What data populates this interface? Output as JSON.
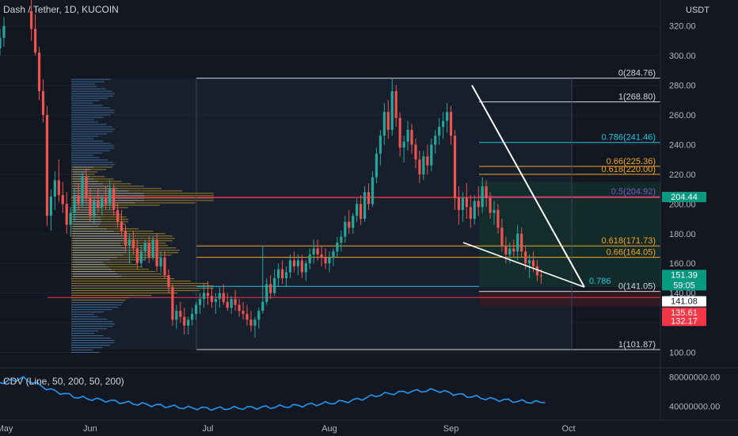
{
  "header": {
    "symbol_line": "Dash / Tether, 1D, KUCOIN",
    "currency": "USDT"
  },
  "colors": {
    "background": "#131722",
    "up": "#26a69a",
    "down": "#ef5350",
    "grid": "#1e2230",
    "fib_white": "#d1d4dc",
    "fib_orange": "#f5a623",
    "fib_cyan": "#26c6da",
    "fib_purple": "#7e57c2",
    "red_line": "#f23645",
    "cdv_line": "#2196f3",
    "tag_green": "#089981",
    "tag_red": "#f23645"
  },
  "chart_data": {
    "type": "candlestick",
    "y_axis": {
      "ticks": [
        "100.00",
        "120.00",
        "140.00",
        "160.00",
        "180.00",
        "200.00",
        "220.00",
        "240.00",
        "260.00",
        "280.00",
        "300.00",
        "320.00"
      ],
      "range": [
        96,
        330
      ]
    },
    "x_axis": {
      "ticks": [
        "May",
        "Jun",
        "Jul",
        "Aug",
        "Sep",
        "Oct"
      ],
      "range": [
        "2022-05-09",
        "2022-10-03"
      ]
    },
    "fib_levels": [
      {
        "label": "0(284.76)",
        "value": 284.76,
        "color": "white"
      },
      {
        "label": "1(268.80)",
        "value": 268.8,
        "color": "white"
      },
      {
        "label": "0.786(241.46)",
        "value": 241.46,
        "color": "cyan"
      },
      {
        "label": "0.66(225.36)",
        "value": 225.36,
        "color": "orange"
      },
      {
        "label": "0.618(220.00)",
        "value": 220.0,
        "color": "orange"
      },
      {
        "label": "0.5(204.92)",
        "value": 204.92,
        "color": "purple"
      },
      {
        "label": "0.618(171.73)",
        "value": 171.73,
        "color": "orange"
      },
      {
        "label": "0.66(164.05)",
        "value": 164.05,
        "color": "orange"
      },
      {
        "label": "0.786",
        "value": 144.5,
        "color": "cyan"
      },
      {
        "label": "0(141.05)",
        "value": 141.05,
        "color": "white"
      },
      {
        "label": "1(101.87)",
        "value": 101.87,
        "color": "white"
      }
    ],
    "horizontal_lines": [
      {
        "value": 204.44,
        "color": "red"
      },
      {
        "value": 137.0,
        "color": "red"
      }
    ],
    "price_tags": [
      {
        "value": 204.44,
        "text": "204.44",
        "bg": "green",
        "fg": "#ffffff"
      },
      {
        "value": 151.39,
        "text": "151.39",
        "sub": "59:05",
        "bg": "green",
        "fg": "#ffffff"
      },
      {
        "value": 141.08,
        "text": "141.08",
        "bg": "white",
        "fg": "#131722"
      },
      {
        "value": 135.61,
        "text": "135.61",
        "bg": "red",
        "fg": "#ffffff"
      },
      {
        "value": 132.17,
        "text": "132.17",
        "bg": "red",
        "fg": "#ffffff"
      }
    ],
    "candles": [
      [
        "2022-05-09",
        305,
        318,
        300,
        312
      ],
      [
        "2022-05-10",
        312,
        326,
        306,
        320
      ],
      [
        "2022-05-17",
        330,
        338,
        310,
        318
      ],
      [
        "2022-05-18",
        318,
        328,
        300,
        302
      ],
      [
        "2022-05-19",
        302,
        306,
        270,
        276
      ],
      [
        "2022-05-20",
        276,
        284,
        255,
        260
      ],
      [
        "2022-05-21",
        260,
        266,
        185,
        192
      ],
      [
        "2022-05-22",
        192,
        210,
        182,
        205
      ],
      [
        "2022-05-23",
        205,
        222,
        196,
        216
      ],
      [
        "2022-05-24",
        216,
        230,
        201,
        206
      ],
      [
        "2022-05-25",
        206,
        215,
        194,
        200
      ],
      [
        "2022-05-26",
        200,
        208,
        180,
        186
      ],
      [
        "2022-05-27",
        186,
        198,
        178,
        194
      ],
      [
        "2022-05-28",
        194,
        210,
        188,
        206
      ],
      [
        "2022-05-29",
        206,
        214,
        196,
        200
      ],
      [
        "2022-05-30",
        200,
        222,
        198,
        218
      ],
      [
        "2022-05-31",
        218,
        224,
        200,
        204
      ],
      [
        "2022-06-01",
        204,
        210,
        188,
        192
      ],
      [
        "2022-06-02",
        192,
        206,
        186,
        202
      ],
      [
        "2022-06-03",
        202,
        210,
        194,
        198
      ],
      [
        "2022-06-04",
        198,
        206,
        192,
        204
      ],
      [
        "2022-06-05",
        204,
        212,
        196,
        200
      ],
      [
        "2022-06-06",
        200,
        216,
        196,
        210
      ],
      [
        "2022-06-07",
        210,
        214,
        192,
        196
      ],
      [
        "2022-06-08",
        196,
        200,
        184,
        188
      ],
      [
        "2022-06-09",
        188,
        196,
        178,
        182
      ],
      [
        "2022-06-10",
        182,
        186,
        168,
        172
      ],
      [
        "2022-06-11",
        172,
        180,
        160,
        176
      ],
      [
        "2022-06-12",
        176,
        182,
        166,
        170
      ],
      [
        "2022-06-13",
        170,
        176,
        156,
        160
      ],
      [
        "2022-06-14",
        160,
        172,
        158,
        168
      ],
      [
        "2022-06-15",
        168,
        176,
        162,
        174
      ],
      [
        "2022-06-16",
        174,
        178,
        160,
        164
      ],
      [
        "2022-06-17",
        164,
        178,
        162,
        176
      ],
      [
        "2022-06-18",
        176,
        180,
        154,
        158
      ],
      [
        "2022-06-19",
        158,
        168,
        154,
        164
      ],
      [
        "2022-06-20",
        164,
        168,
        150,
        152
      ],
      [
        "2022-06-21",
        152,
        156,
        140,
        144
      ],
      [
        "2022-06-22",
        144,
        146,
        118,
        122
      ],
      [
        "2022-06-23",
        122,
        132,
        116,
        128
      ],
      [
        "2022-06-24",
        128,
        134,
        120,
        124
      ],
      [
        "2022-06-25",
        124,
        130,
        112,
        118
      ],
      [
        "2022-06-26",
        118,
        124,
        112,
        122
      ],
      [
        "2022-06-27",
        122,
        130,
        118,
        126
      ],
      [
        "2022-06-28",
        126,
        134,
        122,
        132
      ],
      [
        "2022-06-29",
        132,
        140,
        126,
        136
      ],
      [
        "2022-06-30",
        136,
        146,
        130,
        140
      ],
      [
        "2022-07-01",
        140,
        148,
        132,
        138
      ],
      [
        "2022-07-02",
        138,
        144,
        130,
        134
      ],
      [
        "2022-07-03",
        134,
        140,
        126,
        136
      ],
      [
        "2022-07-04",
        136,
        144,
        130,
        140
      ],
      [
        "2022-07-05",
        140,
        146,
        132,
        134
      ],
      [
        "2022-07-06",
        134,
        140,
        128,
        130
      ],
      [
        "2022-07-07",
        130,
        138,
        126,
        136
      ],
      [
        "2022-07-08",
        136,
        142,
        128,
        132
      ],
      [
        "2022-07-09",
        132,
        136,
        124,
        128
      ],
      [
        "2022-07-10",
        128,
        134,
        122,
        126
      ],
      [
        "2022-07-11",
        126,
        132,
        118,
        122
      ],
      [
        "2022-07-12",
        122,
        128,
        114,
        118
      ],
      [
        "2022-07-13",
        118,
        124,
        110,
        122
      ],
      [
        "2022-07-14",
        122,
        130,
        116,
        128
      ],
      [
        "2022-07-15",
        128,
        172,
        126,
        134
      ],
      [
        "2022-07-16",
        134,
        150,
        132,
        146
      ],
      [
        "2022-07-17",
        146,
        152,
        136,
        140
      ],
      [
        "2022-07-18",
        140,
        156,
        138,
        150
      ],
      [
        "2022-07-19",
        150,
        160,
        144,
        156
      ],
      [
        "2022-07-20",
        156,
        162,
        146,
        150
      ],
      [
        "2022-07-21",
        150,
        158,
        144,
        154
      ],
      [
        "2022-07-22",
        154,
        166,
        150,
        162
      ],
      [
        "2022-07-23",
        162,
        168,
        154,
        158
      ],
      [
        "2022-07-24",
        158,
        166,
        152,
        162
      ],
      [
        "2022-07-25",
        162,
        166,
        150,
        154
      ],
      [
        "2022-07-26",
        154,
        162,
        148,
        160
      ],
      [
        "2022-07-27",
        160,
        170,
        156,
        166
      ],
      [
        "2022-07-28",
        166,
        176,
        160,
        170
      ],
      [
        "2022-07-29",
        170,
        176,
        162,
        166
      ],
      [
        "2022-07-30",
        166,
        172,
        158,
        164
      ],
      [
        "2022-07-31",
        164,
        170,
        156,
        160
      ],
      [
        "2022-08-01",
        160,
        168,
        154,
        164
      ],
      [
        "2022-08-02",
        164,
        170,
        158,
        168
      ],
      [
        "2022-08-03",
        168,
        178,
        164,
        174
      ],
      [
        "2022-08-04",
        174,
        182,
        168,
        178
      ],
      [
        "2022-08-05",
        178,
        192,
        174,
        188
      ],
      [
        "2022-08-06",
        188,
        196,
        180,
        184
      ],
      [
        "2022-08-07",
        184,
        194,
        180,
        192
      ],
      [
        "2022-08-08",
        192,
        204,
        188,
        200
      ],
      [
        "2022-08-09",
        200,
        206,
        186,
        190
      ],
      [
        "2022-08-10",
        190,
        212,
        188,
        208
      ],
      [
        "2022-08-11",
        208,
        214,
        196,
        200
      ],
      [
        "2022-08-12",
        200,
        222,
        198,
        218
      ],
      [
        "2022-08-13",
        218,
        238,
        214,
        234
      ],
      [
        "2022-08-14",
        234,
        250,
        226,
        246
      ],
      [
        "2022-08-15",
        246,
        268,
        240,
        262
      ],
      [
        "2022-08-16",
        262,
        270,
        244,
        250
      ],
      [
        "2022-08-17",
        250,
        285,
        246,
        276
      ],
      [
        "2022-08-18",
        276,
        280,
        252,
        258
      ],
      [
        "2022-08-19",
        258,
        262,
        232,
        238
      ],
      [
        "2022-08-20",
        238,
        246,
        228,
        242
      ],
      [
        "2022-08-21",
        242,
        256,
        236,
        250
      ],
      [
        "2022-08-22",
        250,
        254,
        234,
        240
      ],
      [
        "2022-08-23",
        240,
        244,
        224,
        230
      ],
      [
        "2022-08-24",
        230,
        236,
        214,
        220
      ],
      [
        "2022-08-25",
        220,
        236,
        216,
        232
      ],
      [
        "2022-08-26",
        232,
        240,
        220,
        226
      ],
      [
        "2022-08-27",
        226,
        244,
        222,
        240
      ],
      [
        "2022-08-28",
        240,
        250,
        234,
        246
      ],
      [
        "2022-08-29",
        246,
        258,
        240,
        252
      ],
      [
        "2022-08-30",
        252,
        262,
        244,
        256
      ],
      [
        "2022-08-31",
        256,
        268,
        248,
        262
      ],
      [
        "2022-09-01",
        262,
        266,
        240,
        246
      ],
      [
        "2022-09-02",
        246,
        250,
        196,
        204
      ],
      [
        "2022-09-03",
        204,
        212,
        186,
        196
      ],
      [
        "2022-09-04",
        196,
        208,
        188,
        204
      ],
      [
        "2022-09-05",
        204,
        214,
        190,
        198
      ],
      [
        "2022-09-06",
        198,
        206,
        184,
        190
      ],
      [
        "2022-09-07",
        190,
        206,
        186,
        202
      ],
      [
        "2022-09-08",
        202,
        212,
        192,
        198
      ],
      [
        "2022-09-09",
        198,
        218,
        194,
        212
      ],
      [
        "2022-09-10",
        212,
        216,
        198,
        204
      ],
      [
        "2022-09-11",
        204,
        208,
        190,
        194
      ],
      [
        "2022-09-12",
        194,
        202,
        186,
        196
      ],
      [
        "2022-09-13",
        196,
        200,
        180,
        184
      ],
      [
        "2022-09-14",
        184,
        190,
        168,
        172
      ],
      [
        "2022-09-15",
        172,
        178,
        160,
        166
      ],
      [
        "2022-09-16",
        166,
        174,
        160,
        170
      ],
      [
        "2022-09-17",
        170,
        176,
        164,
        168
      ],
      [
        "2022-09-18",
        168,
        186,
        162,
        180
      ],
      [
        "2022-09-19",
        180,
        184,
        164,
        168
      ],
      [
        "2022-09-20",
        168,
        172,
        156,
        160
      ],
      [
        "2022-09-21",
        160,
        166,
        150,
        162
      ],
      [
        "2022-09-22",
        162,
        168,
        154,
        158
      ],
      [
        "2022-09-23",
        158,
        162,
        148,
        152
      ],
      [
        "2022-09-24",
        152,
        156,
        146,
        151.39
      ]
    ],
    "cdv": {
      "label": "CDV (Line, 50, 200, 50, 200)",
      "y_ticks": [
        "80000000.00",
        "40000000.00"
      ],
      "y_range": [
        30000000,
        90000000
      ],
      "x": [
        "2022-05-09",
        "2022-05-15",
        "2022-05-22",
        "2022-05-29",
        "2022-06-05",
        "2022-06-12",
        "2022-06-19",
        "2022-06-26",
        "2022-07-03",
        "2022-07-10",
        "2022-07-17",
        "2022-07-24",
        "2022-07-31",
        "2022-08-07",
        "2022-08-14",
        "2022-08-21",
        "2022-08-28",
        "2022-09-04",
        "2022-09-11",
        "2022-09-18",
        "2022-09-25"
      ],
      "values": [
        72000000,
        78000000,
        62000000,
        52000000,
        48000000,
        44000000,
        41000000,
        38000000,
        37000000,
        38000000,
        39000000,
        41000000,
        44000000,
        48000000,
        56000000,
        60000000,
        62000000,
        55000000,
        50000000,
        47000000,
        45000000
      ]
    }
  }
}
